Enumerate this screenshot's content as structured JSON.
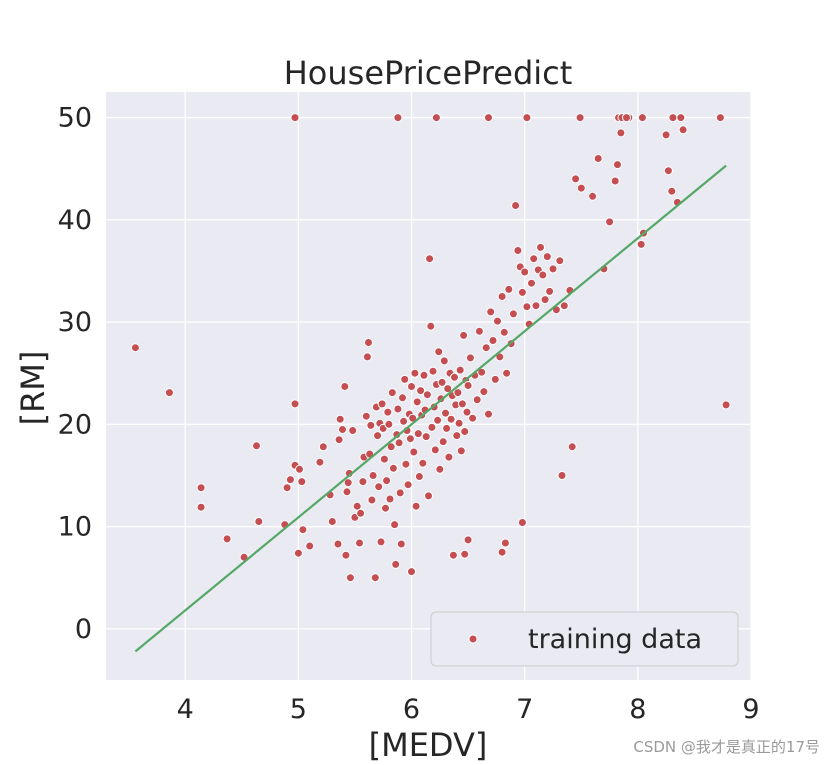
{
  "chart_data": {
    "type": "scatter",
    "title": "HousePricePredict",
    "xlabel": "[MEDV]",
    "ylabel": "[RM]",
    "xlim": [
      3.3,
      9.0
    ],
    "ylim": [
      -5,
      52.5
    ],
    "xticks": [
      4,
      5,
      6,
      7,
      8,
      9
    ],
    "yticks": [
      0,
      10,
      20,
      30,
      40,
      50
    ],
    "grid": true,
    "legend_position": "bottom-right",
    "series": [
      {
        "name": "training data",
        "kind": "scatter",
        "color": "#c44e52",
        "points": [
          [
            3.56,
            27.5
          ],
          [
            3.86,
            23.1
          ],
          [
            4.14,
            13.8
          ],
          [
            4.14,
            11.9
          ],
          [
            4.37,
            8.8
          ],
          [
            4.52,
            7.0
          ],
          [
            4.63,
            17.9
          ],
          [
            4.65,
            10.5
          ],
          [
            4.88,
            10.2
          ],
          [
            4.9,
            13.8
          ],
          [
            4.93,
            14.6
          ],
          [
            4.97,
            22.0
          ],
          [
            4.97,
            16.0
          ],
          [
            5.0,
            7.4
          ],
          [
            5.01,
            15.6
          ],
          [
            5.03,
            14.4
          ],
          [
            5.04,
            9.7
          ],
          [
            5.1,
            8.1
          ],
          [
            5.19,
            16.3
          ],
          [
            5.22,
            17.8
          ],
          [
            5.28,
            13.1
          ],
          [
            5.3,
            10.5
          ],
          [
            5.35,
            8.3
          ],
          [
            5.36,
            18.5
          ],
          [
            5.37,
            20.5
          ],
          [
            5.39,
            19.5
          ],
          [
            5.41,
            23.7
          ],
          [
            5.42,
            7.2
          ],
          [
            5.43,
            13.4
          ],
          [
            5.44,
            14.3
          ],
          [
            5.45,
            15.2
          ],
          [
            5.46,
            5.0
          ],
          [
            5.48,
            19.4
          ],
          [
            5.5,
            10.9
          ],
          [
            5.52,
            12.0
          ],
          [
            5.54,
            8.4
          ],
          [
            5.55,
            11.3
          ],
          [
            5.57,
            14.4
          ],
          [
            5.58,
            16.8
          ],
          [
            5.6,
            20.8
          ],
          [
            5.61,
            26.6
          ],
          [
            5.62,
            28.0
          ],
          [
            5.63,
            17.1
          ],
          [
            5.64,
            19.9
          ],
          [
            5.65,
            12.6
          ],
          [
            5.66,
            15.0
          ],
          [
            5.68,
            5.0
          ],
          [
            5.69,
            21.7
          ],
          [
            5.7,
            18.9
          ],
          [
            5.71,
            13.9
          ],
          [
            5.72,
            20.1
          ],
          [
            5.73,
            8.5
          ],
          [
            5.74,
            22.0
          ],
          [
            5.75,
            19.6
          ],
          [
            5.76,
            16.6
          ],
          [
            5.77,
            11.8
          ],
          [
            5.78,
            14.5
          ],
          [
            5.79,
            21.2
          ],
          [
            5.8,
            20.0
          ],
          [
            5.81,
            12.7
          ],
          [
            5.82,
            17.8
          ],
          [
            5.83,
            23.1
          ],
          [
            5.84,
            15.7
          ],
          [
            5.85,
            10.2
          ],
          [
            5.86,
            6.3
          ],
          [
            5.87,
            19.0
          ],
          [
            5.88,
            21.5
          ],
          [
            5.89,
            18.2
          ],
          [
            5.9,
            13.3
          ],
          [
            5.91,
            8.3
          ],
          [
            5.92,
            22.6
          ],
          [
            5.93,
            20.3
          ],
          [
            5.94,
            24.4
          ],
          [
            5.95,
            16.1
          ],
          [
            5.96,
            19.4
          ],
          [
            5.97,
            14.1
          ],
          [
            5.98,
            21.0
          ],
          [
            5.99,
            18.6
          ],
          [
            6.0,
            5.6
          ],
          [
            6.0,
            23.7
          ],
          [
            6.01,
            20.6
          ],
          [
            6.02,
            17.3
          ],
          [
            6.03,
            25.0
          ],
          [
            6.04,
            12.0
          ],
          [
            6.05,
            22.2
          ],
          [
            6.06,
            19.1
          ],
          [
            6.07,
            14.9
          ],
          [
            6.08,
            23.3
          ],
          [
            6.09,
            20.9
          ],
          [
            6.1,
            16.2
          ],
          [
            6.11,
            24.8
          ],
          [
            6.12,
            21.4
          ],
          [
            6.13,
            18.8
          ],
          [
            6.14,
            22.9
          ],
          [
            6.15,
            13.0
          ],
          [
            6.16,
            36.2
          ],
          [
            6.17,
            29.6
          ],
          [
            6.18,
            19.7
          ],
          [
            6.19,
            25.2
          ],
          [
            6.2,
            21.7
          ],
          [
            6.21,
            17.5
          ],
          [
            6.22,
            23.9
          ],
          [
            6.23,
            20.4
          ],
          [
            6.24,
            27.1
          ],
          [
            6.25,
            15.6
          ],
          [
            6.26,
            22.5
          ],
          [
            6.27,
            24.1
          ],
          [
            6.28,
            18.3
          ],
          [
            6.29,
            26.2
          ],
          [
            6.3,
            21.1
          ],
          [
            6.31,
            19.6
          ],
          [
            6.32,
            23.5
          ],
          [
            6.33,
            16.8
          ],
          [
            6.34,
            25.0
          ],
          [
            6.35,
            20.5
          ],
          [
            6.36,
            22.8
          ],
          [
            6.37,
            7.2
          ],
          [
            6.38,
            24.6
          ],
          [
            6.39,
            21.9
          ],
          [
            6.4,
            18.9
          ],
          [
            6.41,
            23.1
          ],
          [
            6.42,
            20.1
          ],
          [
            6.43,
            25.3
          ],
          [
            6.44,
            17.4
          ],
          [
            6.45,
            22.0
          ],
          [
            6.46,
            28.7
          ],
          [
            6.47,
            19.3
          ],
          [
            6.48,
            24.3
          ],
          [
            6.49,
            21.2
          ],
          [
            6.5,
            23.8
          ],
          [
            6.52,
            26.5
          ],
          [
            6.54,
            20.6
          ],
          [
            6.56,
            24.8
          ],
          [
            6.58,
            22.4
          ],
          [
            6.6,
            29.1
          ],
          [
            6.62,
            25.1
          ],
          [
            6.64,
            23.2
          ],
          [
            6.66,
            27.5
          ],
          [
            6.68,
            21.0
          ],
          [
            6.7,
            31.0
          ],
          [
            6.72,
            28.2
          ],
          [
            6.74,
            24.4
          ],
          [
            6.76,
            30.1
          ],
          [
            6.78,
            26.6
          ],
          [
            6.8,
            32.5
          ],
          [
            6.82,
            29.0
          ],
          [
            6.84,
            25.0
          ],
          [
            6.86,
            33.2
          ],
          [
            6.88,
            27.9
          ],
          [
            6.9,
            30.8
          ],
          [
            6.92,
            41.4
          ],
          [
            6.94,
            37.0
          ],
          [
            6.96,
            35.4
          ],
          [
            6.98,
            32.9
          ],
          [
            7.0,
            34.9
          ],
          [
            7.02,
            31.5
          ],
          [
            7.04,
            29.8
          ],
          [
            7.06,
            33.8
          ],
          [
            7.08,
            36.2
          ],
          [
            7.1,
            31.6
          ],
          [
            7.12,
            35.1
          ],
          [
            7.14,
            37.3
          ],
          [
            7.16,
            34.6
          ],
          [
            7.18,
            32.2
          ],
          [
            7.2,
            36.4
          ],
          [
            7.22,
            33.0
          ],
          [
            7.25,
            35.2
          ],
          [
            7.28,
            31.2
          ],
          [
            7.31,
            36.0
          ],
          [
            7.35,
            31.6
          ],
          [
            7.4,
            33.1
          ],
          [
            7.42,
            17.8
          ],
          [
            7.45,
            44.0
          ],
          [
            7.5,
            43.1
          ],
          [
            7.6,
            42.3
          ],
          [
            7.65,
            46.0
          ],
          [
            7.7,
            35.2
          ],
          [
            7.75,
            39.8
          ],
          [
            7.8,
            43.8
          ],
          [
            7.82,
            45.4
          ],
          [
            7.85,
            48.5
          ],
          [
            7.92,
            50.0
          ],
          [
            8.03,
            37.6
          ],
          [
            8.05,
            38.7
          ],
          [
            8.25,
            48.3
          ],
          [
            8.27,
            44.8
          ],
          [
            8.3,
            42.8
          ],
          [
            8.35,
            41.7
          ],
          [
            8.4,
            48.8
          ],
          [
            8.78,
            21.9
          ],
          [
            6.47,
            7.3
          ],
          [
            6.5,
            8.7
          ],
          [
            6.8,
            7.5
          ],
          [
            6.83,
            8.4
          ],
          [
            6.98,
            10.4
          ],
          [
            7.33,
            15.0
          ],
          [
            4.97,
            50.0
          ],
          [
            5.88,
            50.0
          ],
          [
            6.22,
            50.0
          ],
          [
            6.68,
            50.0
          ],
          [
            7.02,
            50.0
          ],
          [
            7.49,
            50.0
          ],
          [
            7.83,
            50.0
          ],
          [
            7.86,
            50.0
          ],
          [
            7.9,
            50.0
          ],
          [
            8.04,
            50.0
          ],
          [
            8.31,
            50.0
          ],
          [
            8.38,
            50.0
          ],
          [
            8.73,
            50.0
          ]
        ]
      },
      {
        "name": "regression line",
        "kind": "line",
        "color": "#55a868",
        "points": [
          [
            3.56,
            -2.2
          ],
          [
            8.78,
            45.3
          ]
        ]
      }
    ]
  },
  "legend": {
    "entries": [
      {
        "label": "training data",
        "color": "#c44e52"
      }
    ]
  },
  "watermark": "CSDN @我才是真正的17号"
}
